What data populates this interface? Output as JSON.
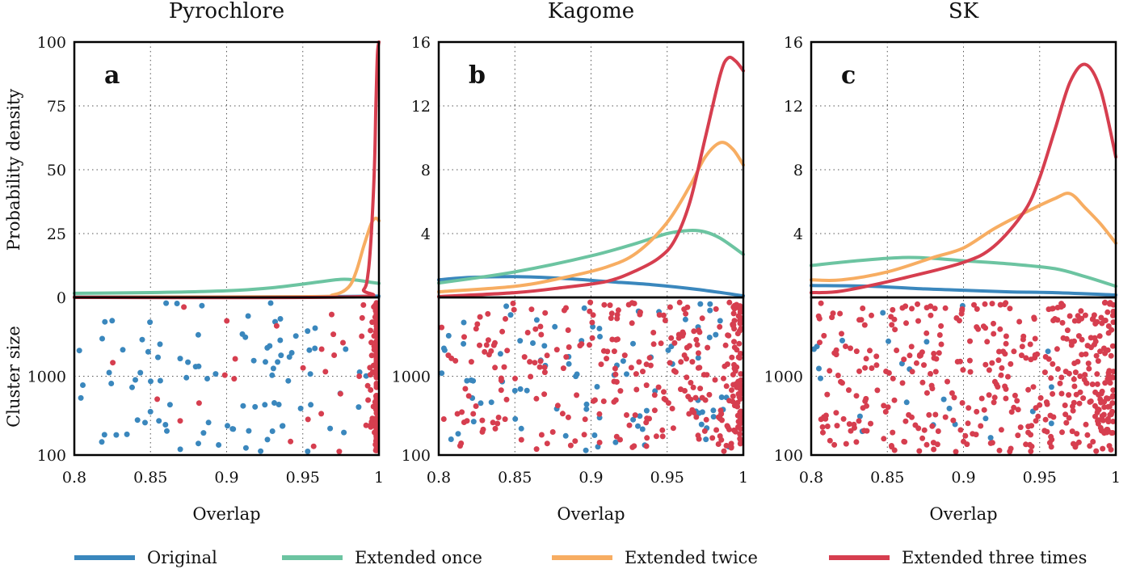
{
  "chart_data": {
    "type": "line",
    "shared": {
      "xlabel": "Overlap",
      "ylabel_top": "Probability density",
      "ylabel_bottom": "Cluster size",
      "xlim": [
        0.8,
        1.0
      ],
      "xticks": [
        0.8,
        0.85,
        0.9,
        0.95,
        1.0
      ],
      "xtick_labels": [
        "0.8",
        "0.85",
        "0.9",
        "0.95",
        "1"
      ],
      "grid": true,
      "legend_position": "bottom-center"
    },
    "series_style": [
      {
        "name": "Original",
        "color": "#3a87bd"
      },
      {
        "name": "Extended once",
        "color": "#6cc4a1"
      },
      {
        "name": "Extended twice",
        "color": "#f7ad62"
      },
      {
        "name": "Extended three times",
        "color": "#d63e4f"
      }
    ],
    "panels": [
      {
        "title": "Pyrochlore",
        "letter": "a",
        "ylim": [
          0,
          100
        ],
        "yticks": [
          0,
          25,
          50,
          75,
          100
        ],
        "ytick_labels": [
          "0",
          "25",
          "50",
          "75",
          "100"
        ],
        "scatter_yticks": [
          1000,
          100
        ],
        "scatter_ytick_labels": [
          "1000",
          "100"
        ],
        "scatter_ylim": [
          100,
          10000
        ],
        "density": [
          {
            "name": "Original",
            "x": [
              0.8,
              0.9,
              0.95,
              0.98,
              1.0
            ],
            "y": [
              0.2,
              0.2,
              0.3,
              0.4,
              0.5
            ]
          },
          {
            "name": "Extended once",
            "x": [
              0.8,
              0.85,
              0.9,
              0.93,
              0.96,
              0.975,
              0.985,
              0.995,
              1.0
            ],
            "y": [
              1.6,
              1.9,
              2.6,
              3.8,
              6.0,
              7.1,
              6.8,
              5.9,
              5.5
            ]
          },
          {
            "name": "Extended twice",
            "x": [
              0.8,
              0.95,
              0.97,
              0.98,
              0.985,
              0.99,
              0.995,
              0.998,
              1.0
            ],
            "y": [
              0.1,
              0.3,
              1.0,
              4.0,
              10.0,
              20.0,
              29.0,
              31.0,
              30.0
            ]
          },
          {
            "name": "Extended three times",
            "x": [
              0.8,
              0.98,
              0.99,
              0.993,
              0.995,
              0.997,
              0.998,
              0.999,
              1.0
            ],
            "y": [
              0.0,
              0.2,
              3.0,
              10.0,
              25.0,
              50.0,
              75.0,
              95.0,
              100.0
            ]
          }
        ]
      },
      {
        "title": "Kagome",
        "letter": "b",
        "ylim": [
          0,
          16
        ],
        "yticks": [
          4,
          8,
          12,
          16
        ],
        "ytick_labels": [
          "4",
          "8",
          "12",
          "16"
        ],
        "scatter_yticks": [
          1000,
          100
        ],
        "scatter_ytick_labels": [
          "1000",
          "100"
        ],
        "scatter_ylim": [
          100,
          10000
        ],
        "density": [
          {
            "name": "Original",
            "x": [
              0.8,
              0.82,
              0.85,
              0.88,
              0.91,
              0.94,
              0.97,
              1.0
            ],
            "y": [
              1.1,
              1.25,
              1.3,
              1.2,
              1.0,
              0.8,
              0.5,
              0.1
            ]
          },
          {
            "name": "Extended once",
            "x": [
              0.8,
              0.85,
              0.9,
              0.93,
              0.95,
              0.965,
              0.975,
              0.985,
              1.0
            ],
            "y": [
              0.9,
              1.6,
              2.6,
              3.4,
              4.0,
              4.2,
              4.1,
              3.7,
              2.7
            ]
          },
          {
            "name": "Extended twice",
            "x": [
              0.8,
              0.85,
              0.88,
              0.91,
              0.93,
              0.95,
              0.965,
              0.975,
              0.985,
              0.993,
              1.0
            ],
            "y": [
              0.35,
              0.7,
              1.2,
              1.9,
              2.8,
              4.7,
              7.0,
              8.8,
              9.7,
              9.3,
              8.3
            ]
          },
          {
            "name": "Extended three times",
            "x": [
              0.8,
              0.85,
              0.88,
              0.91,
              0.93,
              0.945,
              0.955,
              0.965,
              0.975,
              0.985,
              0.99,
              0.995,
              1.0
            ],
            "y": [
              0.05,
              0.3,
              0.6,
              1.0,
              1.7,
              2.5,
              3.6,
              6.0,
              10.0,
              14.0,
              15.0,
              14.8,
              14.2
            ]
          }
        ]
      },
      {
        "title": "SK",
        "letter": "c",
        "ylim": [
          0,
          16
        ],
        "yticks": [
          4,
          8,
          12,
          16
        ],
        "ytick_labels": [
          "4",
          "8",
          "12",
          "16"
        ],
        "scatter_yticks": [
          1000,
          100
        ],
        "scatter_ytick_labels": [
          "1000",
          "100"
        ],
        "scatter_ylim": [
          100,
          10000
        ],
        "density": [
          {
            "name": "Original",
            "x": [
              0.8,
              0.84,
              0.87,
              0.9,
              0.93,
              0.96,
              1.0
            ],
            "y": [
              0.75,
              0.7,
              0.55,
              0.45,
              0.35,
              0.3,
              0.15
            ]
          },
          {
            "name": "Extended once",
            "x": [
              0.8,
              0.83,
              0.86,
              0.88,
              0.9,
              0.93,
              0.96,
              0.98,
              1.0
            ],
            "y": [
              2.0,
              2.3,
              2.5,
              2.45,
              2.3,
              2.1,
              1.8,
              1.3,
              0.7
            ]
          },
          {
            "name": "Extended twice",
            "x": [
              0.8,
              0.82,
              0.85,
              0.88,
              0.9,
              0.92,
              0.94,
              0.96,
              0.97,
              0.98,
              0.99,
              1.0
            ],
            "y": [
              1.1,
              1.1,
              1.6,
              2.5,
              3.1,
              4.3,
              5.3,
              6.2,
              6.5,
              5.6,
              4.6,
              3.4
            ]
          },
          {
            "name": "Extended three times",
            "x": [
              0.8,
              0.82,
              0.86,
              0.9,
              0.92,
              0.94,
              0.95,
              0.96,
              0.97,
              0.98,
              0.99,
              1.0
            ],
            "y": [
              0.3,
              0.4,
              1.2,
              2.2,
              3.2,
              5.4,
              7.5,
              10.5,
              13.5,
              14.6,
              13.0,
              8.8
            ]
          }
        ]
      }
    ]
  },
  "legend": {
    "items": [
      "Original",
      "Extended once",
      "Extended twice",
      "Extended three times"
    ]
  }
}
